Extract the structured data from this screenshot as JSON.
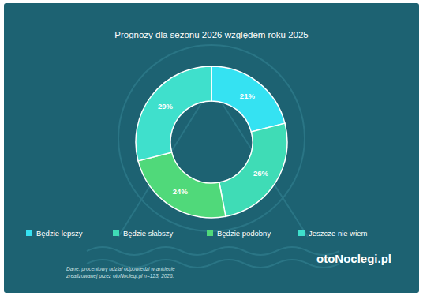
{
  "chart_data": {
    "type": "pie",
    "title": "Prognozy dla sezonu 2026 względem roku 2025",
    "categories": [
      "Będzie lepszy",
      "Będzie słabszy",
      "Będzie podobny",
      "Jeszcze nie wiem"
    ],
    "values": [
      21,
      26,
      24,
      29
    ],
    "value_labels": [
      "21%",
      "26%",
      "24%",
      "29%"
    ],
    "colors": [
      "#35e2f2",
      "#3fdcb6",
      "#50d97a",
      "#3fe0cc"
    ],
    "data_labels": true,
    "legend": "bottom",
    "note": [
      "Dane: procentowy udział odpowiedzi w ankiecie",
      "zrealizowanej przez otoNoclegi.pl n=123, 2026."
    ],
    "logo": "otoNoclegi.pl"
  }
}
